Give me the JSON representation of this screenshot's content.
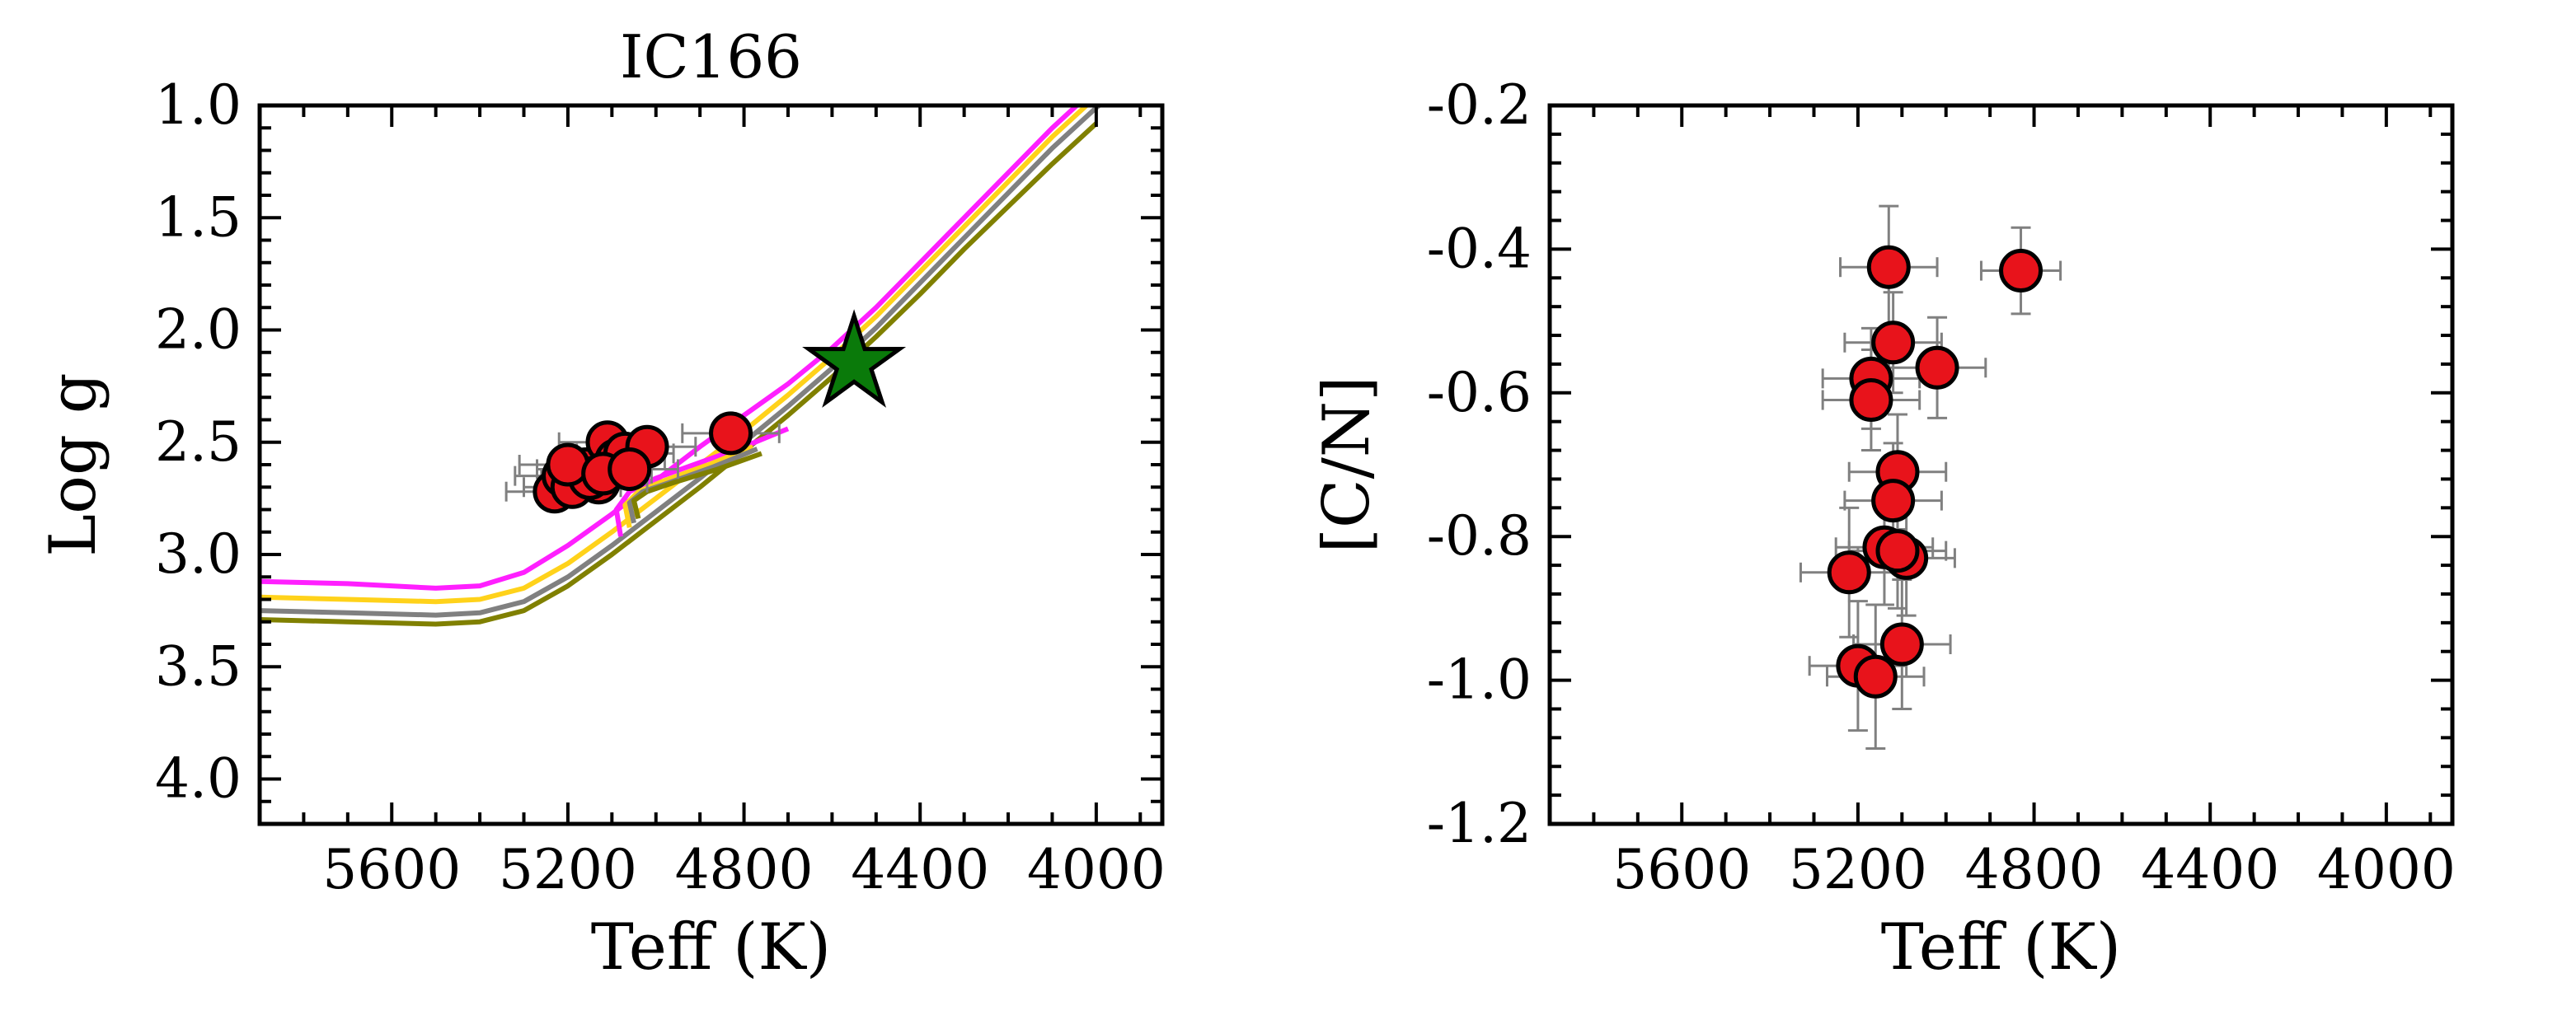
{
  "chart_data": [
    {
      "type": "scatter",
      "title": "IC166",
      "xlabel": "Teff (K)",
      "ylabel": "Log g",
      "xlim": [
        5900,
        3850
      ],
      "ylim": [
        4.2,
        1.0
      ],
      "xticks": [
        5600,
        5200,
        4800,
        4400,
        4000
      ],
      "xtick_labels": [
        "5600",
        "5200",
        "4800",
        "4400",
        "4000"
      ],
      "yticks": [
        1.0,
        1.5,
        2.0,
        2.5,
        3.0,
        3.5,
        4.0
      ],
      "ytick_labels": [
        "1.0",
        "1.5",
        "2.0",
        "2.5",
        "3.0",
        "3.5",
        "4.0"
      ],
      "grid": false,
      "colors": {
        "points": "#e8131b",
        "errorbars": "#808080",
        "star": "#0a7a0a",
        "iso1": "#ff1fff",
        "iso2": "#ffd21a",
        "iso3": "#808080",
        "iso4": "#808000"
      },
      "series": [
        {
          "type": "scatter",
          "x": [
            5230,
            5210,
            5190,
            5160,
            5130,
            5110,
            5090,
            5070,
            5020,
            5150,
            5200,
            5120,
            5060,
            4830
          ],
          "y": [
            2.72,
            2.65,
            2.7,
            2.62,
            2.68,
            2.5,
            2.58,
            2.55,
            2.52,
            2.66,
            2.6,
            2.64,
            2.62,
            2.46
          ],
          "xerr": [
            110,
            110,
            110,
            110,
            110,
            110,
            110,
            110,
            110,
            110,
            110,
            110,
            110,
            110
          ],
          "yerr": [
            0.08,
            0.08,
            0.08,
            0.08,
            0.08,
            0.08,
            0.08,
            0.08,
            0.08,
            0.08,
            0.08,
            0.08,
            0.08,
            0.08
          ]
        },
        {
          "type": "marker",
          "marker": "star",
          "x": [
            4550
          ],
          "y": [
            2.15
          ]
        },
        {
          "type": "line",
          "colorKey": "iso1",
          "points": [
            [
              5900,
              3.12
            ],
            [
              5700,
              3.13
            ],
            [
              5500,
              3.15
            ],
            [
              5400,
              3.14
            ],
            [
              5300,
              3.08
            ],
            [
              5200,
              2.96
            ],
            [
              5100,
              2.82
            ],
            [
              5000,
              2.67
            ],
            [
              4900,
              2.52
            ],
            [
              4800,
              2.38
            ],
            [
              4700,
              2.24
            ],
            [
              4600,
              2.08
            ],
            [
              4500,
              1.9
            ],
            [
              4400,
              1.7
            ],
            [
              4300,
              1.5
            ],
            [
              4200,
              1.3
            ],
            [
              4100,
              1.1
            ],
            [
              4000,
              0.92
            ],
            [
              3950,
              0.84
            ]
          ]
        },
        {
          "type": "line",
          "colorKey": "iso2",
          "points": [
            [
              5900,
              3.19
            ],
            [
              5700,
              3.2
            ],
            [
              5500,
              3.21
            ],
            [
              5400,
              3.2
            ],
            [
              5300,
              3.15
            ],
            [
              5200,
              3.04
            ],
            [
              5100,
              2.9
            ],
            [
              5000,
              2.75
            ],
            [
              4900,
              2.6
            ],
            [
              4800,
              2.45
            ],
            [
              4700,
              2.29
            ],
            [
              4600,
              2.12
            ],
            [
              4500,
              1.94
            ],
            [
              4400,
              1.74
            ],
            [
              4300,
              1.54
            ],
            [
              4200,
              1.34
            ],
            [
              4100,
              1.14
            ],
            [
              4000,
              0.96
            ],
            [
              3950,
              0.88
            ]
          ]
        },
        {
          "type": "line",
          "colorKey": "iso3",
          "points": [
            [
              5900,
              3.25
            ],
            [
              5700,
              3.26
            ],
            [
              5500,
              3.27
            ],
            [
              5400,
              3.26
            ],
            [
              5300,
              3.21
            ],
            [
              5200,
              3.1
            ],
            [
              5100,
              2.96
            ],
            [
              5000,
              2.81
            ],
            [
              4900,
              2.66
            ],
            [
              4800,
              2.5
            ],
            [
              4700,
              2.34
            ],
            [
              4600,
              2.17
            ],
            [
              4500,
              1.99
            ],
            [
              4400,
              1.79
            ],
            [
              4300,
              1.59
            ],
            [
              4200,
              1.39
            ],
            [
              4100,
              1.19
            ],
            [
              4000,
              1.01
            ],
            [
              3950,
              0.93
            ]
          ]
        },
        {
          "type": "line",
          "colorKey": "iso4",
          "points": [
            [
              5900,
              3.29
            ],
            [
              5700,
              3.3
            ],
            [
              5500,
              3.31
            ],
            [
              5400,
              3.3
            ],
            [
              5300,
              3.25
            ],
            [
              5200,
              3.14
            ],
            [
              5100,
              3.0
            ],
            [
              5000,
              2.85
            ],
            [
              4900,
              2.7
            ],
            [
              4800,
              2.54
            ],
            [
              4700,
              2.38
            ],
            [
              4600,
              2.21
            ],
            [
              4500,
              2.03
            ],
            [
              4400,
              1.84
            ],
            [
              4300,
              1.64
            ],
            [
              4200,
              1.45
            ],
            [
              4100,
              1.26
            ],
            [
              4000,
              1.08
            ]
          ]
        },
        {
          "type": "line",
          "colorKey": "iso1",
          "points": [
            [
              5080,
              2.92
            ],
            [
              5090,
              2.8
            ],
            [
              5060,
              2.72
            ],
            [
              5000,
              2.66
            ],
            [
              4900,
              2.59
            ],
            [
              4800,
              2.52
            ],
            [
              4700,
              2.44
            ]
          ]
        },
        {
          "type": "line",
          "colorKey": "iso2",
          "points": [
            [
              5060,
              2.88
            ],
            [
              5070,
              2.78
            ],
            [
              5040,
              2.72
            ],
            [
              4980,
              2.67
            ],
            [
              4880,
              2.6
            ],
            [
              4780,
              2.52
            ]
          ]
        },
        {
          "type": "line",
          "colorKey": "iso3",
          "points": [
            [
              5050,
              2.86
            ],
            [
              5060,
              2.77
            ],
            [
              5030,
              2.72
            ],
            [
              4970,
              2.68
            ],
            [
              4870,
              2.61
            ],
            [
              4770,
              2.53
            ]
          ]
        },
        {
          "type": "line",
          "colorKey": "iso4",
          "points": [
            [
              5040,
              2.84
            ],
            [
              5050,
              2.76
            ],
            [
              5020,
              2.72
            ],
            [
              4960,
              2.68
            ],
            [
              4860,
              2.62
            ],
            [
              4760,
              2.55
            ]
          ]
        }
      ]
    },
    {
      "type": "scatter",
      "title": "",
      "xlabel": "Teff (K)",
      "ylabel": "[C/N]",
      "xlim": [
        5900,
        3850
      ],
      "ylim": [
        -1.2,
        -0.2
      ],
      "xticks": [
        5600,
        5200,
        4800,
        4400,
        4000
      ],
      "xtick_labels": [
        "5600",
        "5200",
        "4800",
        "4400",
        "4000"
      ],
      "yticks": [
        -0.2,
        -0.4,
        -0.6,
        -0.8,
        -1.0,
        -1.2
      ],
      "ytick_labels": [
        "-0.2",
        "-0.4",
        "-0.6",
        "-0.8",
        "-1.0",
        "-1.2"
      ],
      "grid": false,
      "colors": {
        "points": "#e8131b",
        "errorbars": "#808080"
      },
      "series": [
        {
          "type": "scatter",
          "x": [
            5130,
            5120,
            5020,
            5170,
            5170,
            5110,
            5120,
            5220,
            5140,
            5090,
            5100,
            5200,
            5160,
            4830,
            5110
          ],
          "y": [
            -0.425,
            -0.53,
            -0.565,
            -0.58,
            -0.61,
            -0.71,
            -0.75,
            -0.85,
            -0.815,
            -0.83,
            -0.95,
            -0.98,
            -0.995,
            -0.43,
            -0.82
          ],
          "xerr": [
            110,
            110,
            110,
            110,
            110,
            110,
            110,
            110,
            110,
            110,
            110,
            110,
            110,
            90,
            110
          ],
          "yerr": [
            0.085,
            0.07,
            0.07,
            0.07,
            0.07,
            0.08,
            0.08,
            0.09,
            0.08,
            0.08,
            0.09,
            0.09,
            0.1,
            0.06,
            0.08
          ]
        }
      ]
    }
  ]
}
